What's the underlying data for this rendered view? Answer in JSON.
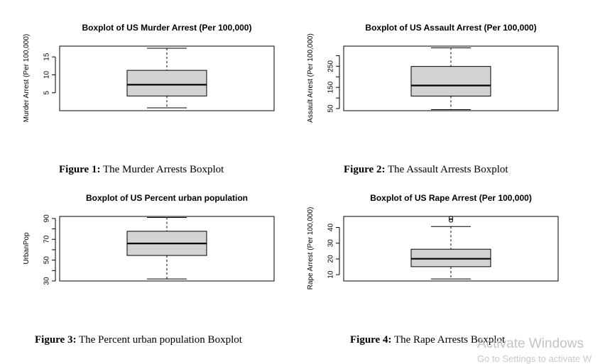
{
  "chart_data": [
    {
      "type": "boxplot",
      "title": "Boxplot of US Murder Arrest (Per 100,000)",
      "ylabel": "Murder Arrest (Per 100,000)",
      "ylim": [
        0,
        18
      ],
      "yticks": [
        5,
        10,
        15
      ],
      "stats": {
        "min": 0.8,
        "q1": 4.1,
        "median": 7.25,
        "q3": 11.25,
        "max": 17.4
      },
      "outliers": [],
      "caption_label": "Figure 1:",
      "caption_text": " The Murder Arrests Boxplot"
    },
    {
      "type": "boxplot",
      "title": "Boxplot of US Assault Arrest (Per 100,000)",
      "ylabel": "Assault Arrest (Per 100,000)",
      "ylim": [
        40,
        345
      ],
      "yticks": [
        50,
        100,
        150,
        200,
        250,
        300
      ],
      "yticklabels": [
        "50",
        "",
        "150",
        "",
        "250",
        ""
      ],
      "stats": {
        "min": 45,
        "q1": 109,
        "median": 159,
        "q3": 249,
        "max": 337
      },
      "outliers": [],
      "caption_label": "Figure 2:",
      "caption_text": " The Assault Arrests Boxplot"
    },
    {
      "type": "boxplot",
      "title": "Boxplot of US Percent urban population",
      "ylabel": "UrbanPop",
      "ylim": [
        30,
        92
      ],
      "yticks": [
        30,
        40,
        50,
        60,
        70,
        80,
        90
      ],
      "yticklabels": [
        "30",
        "",
        "50",
        "",
        "70",
        "",
        "90"
      ],
      "stats": {
        "min": 32,
        "q1": 54.5,
        "median": 66,
        "q3": 77.75,
        "max": 91
      },
      "outliers": [],
      "caption_label": "Figure 3:",
      "caption_text": " The Percent urban population Boxplot"
    },
    {
      "type": "boxplot",
      "title": "Boxplot of US Rape Arrest (Per 100,000)",
      "ylabel": "Rape Arrest (Per 100,000)",
      "ylim": [
        6,
        47
      ],
      "yticks": [
        10,
        20,
        30,
        40
      ],
      "stats": {
        "min": 7.3,
        "q1": 15.075,
        "median": 20.1,
        "q3": 26.175,
        "max": 40.6
      },
      "outliers": [
        44.5,
        46
      ],
      "caption_label": "Figure 4:",
      "caption_text": " The Rape Arrests Boxplot"
    }
  ],
  "watermark": {
    "line1": "Activate Windows",
    "line2": "Go to Settings to activate W"
  },
  "colors": {
    "box_fill": "#d3d3d3",
    "stroke": "#000000"
  }
}
